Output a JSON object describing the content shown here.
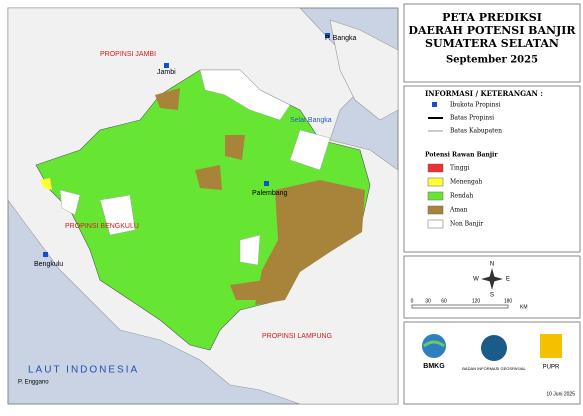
{
  "map": {
    "labels": {
      "bangka": "P. Bangka",
      "jambi_prov": "PROPINSI JAMBI",
      "jambi": "Jambi",
      "selat": "Selat Bangka",
      "palembang": "Palembang",
      "bengkulu_prov": "PROPINSI BENGKULU",
      "bengkulu": "Bengkulu",
      "lampung": "PROPINSI LAMPUNG",
      "laut": "LAUT INDONESIA",
      "enggano": "P. Enggano"
    }
  },
  "title": {
    "line1": "PETA PREDIKSI",
    "line2": "DAERAH POTENSI BANJIR",
    "line3": "SUMATERA SELATAN",
    "period": "September 2025"
  },
  "legend": {
    "heading": "INFORMASI / KETERANGAN :",
    "capital": "Ibukota Propinsi",
    "prov_border": "Batas Propinsi",
    "kab_border": "Batas Kabupaten",
    "flood_heading": "Potensi Rawan Banjir",
    "items": [
      {
        "label": "Tinggi",
        "color": "#f03030"
      },
      {
        "label": "Menengah",
        "color": "#ffff33"
      },
      {
        "label": "Rendah",
        "color": "#66e633"
      },
      {
        "label": "Aman",
        "color": "#a8843a"
      },
      {
        "label": "Non Banjir",
        "color": "#ffffff"
      }
    ]
  },
  "compass": {
    "n": "N",
    "s": "S",
    "e": "E",
    "w": "W"
  },
  "scale": {
    "ticks": [
      "0",
      "30",
      "60",
      "120",
      "180"
    ],
    "unit": "KM"
  },
  "logos": {
    "bmkg": "BMKG",
    "big": "BADAN INFORMASI GEOSPASIAL",
    "pupr": "PUPR"
  },
  "date": "10 Juni 2025"
}
